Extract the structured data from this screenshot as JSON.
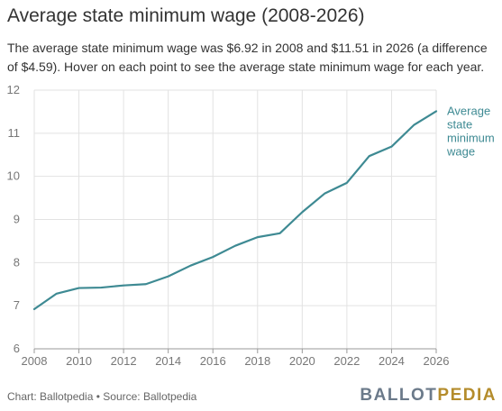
{
  "header": {
    "title": "Average state minimum wage (2008-2026)",
    "subtitle": "The average state minimum wage was $6.92 in 2008 and $11.51 in 2026 (a difference of $4.59). Hover on each point to see the average state minimum wage for each year."
  },
  "footer": {
    "source": "Chart: Ballotpedia • Source: Ballotpedia",
    "logo_part1": "BALLOT",
    "logo_part2": "PEDIA"
  },
  "colors": {
    "line": "#3e8a93",
    "grid": "#e2e2e2",
    "text": "#333333",
    "tick_text": "#777777"
  },
  "chart_data": {
    "type": "line",
    "title": "Average state minimum wage (2008-2026)",
    "xlabel": "",
    "ylabel": "",
    "x": [
      2008,
      2009,
      2010,
      2011,
      2012,
      2013,
      2014,
      2015,
      2016,
      2017,
      2018,
      2019,
      2020,
      2021,
      2022,
      2023,
      2024,
      2025,
      2026
    ],
    "series": [
      {
        "name": "Average state minimum wage",
        "values": [
          6.92,
          7.28,
          7.41,
          7.42,
          7.47,
          7.5,
          7.68,
          7.93,
          8.13,
          8.39,
          8.59,
          8.68,
          9.17,
          9.6,
          9.85,
          10.47,
          10.69,
          11.19,
          11.51
        ]
      }
    ],
    "series_label_lines": [
      "Average",
      "state",
      "minimum",
      "wage"
    ],
    "xlim": [
      2008,
      2026
    ],
    "ylim": [
      6,
      12
    ],
    "xticks": [
      "2008",
      "2010",
      "2012",
      "2014",
      "2016",
      "2018",
      "2020",
      "2022",
      "2024",
      "2026"
    ],
    "yticks": [
      "6",
      "7",
      "8",
      "9",
      "10",
      "11",
      "12"
    ],
    "grid": true,
    "legend": "inline-right"
  }
}
